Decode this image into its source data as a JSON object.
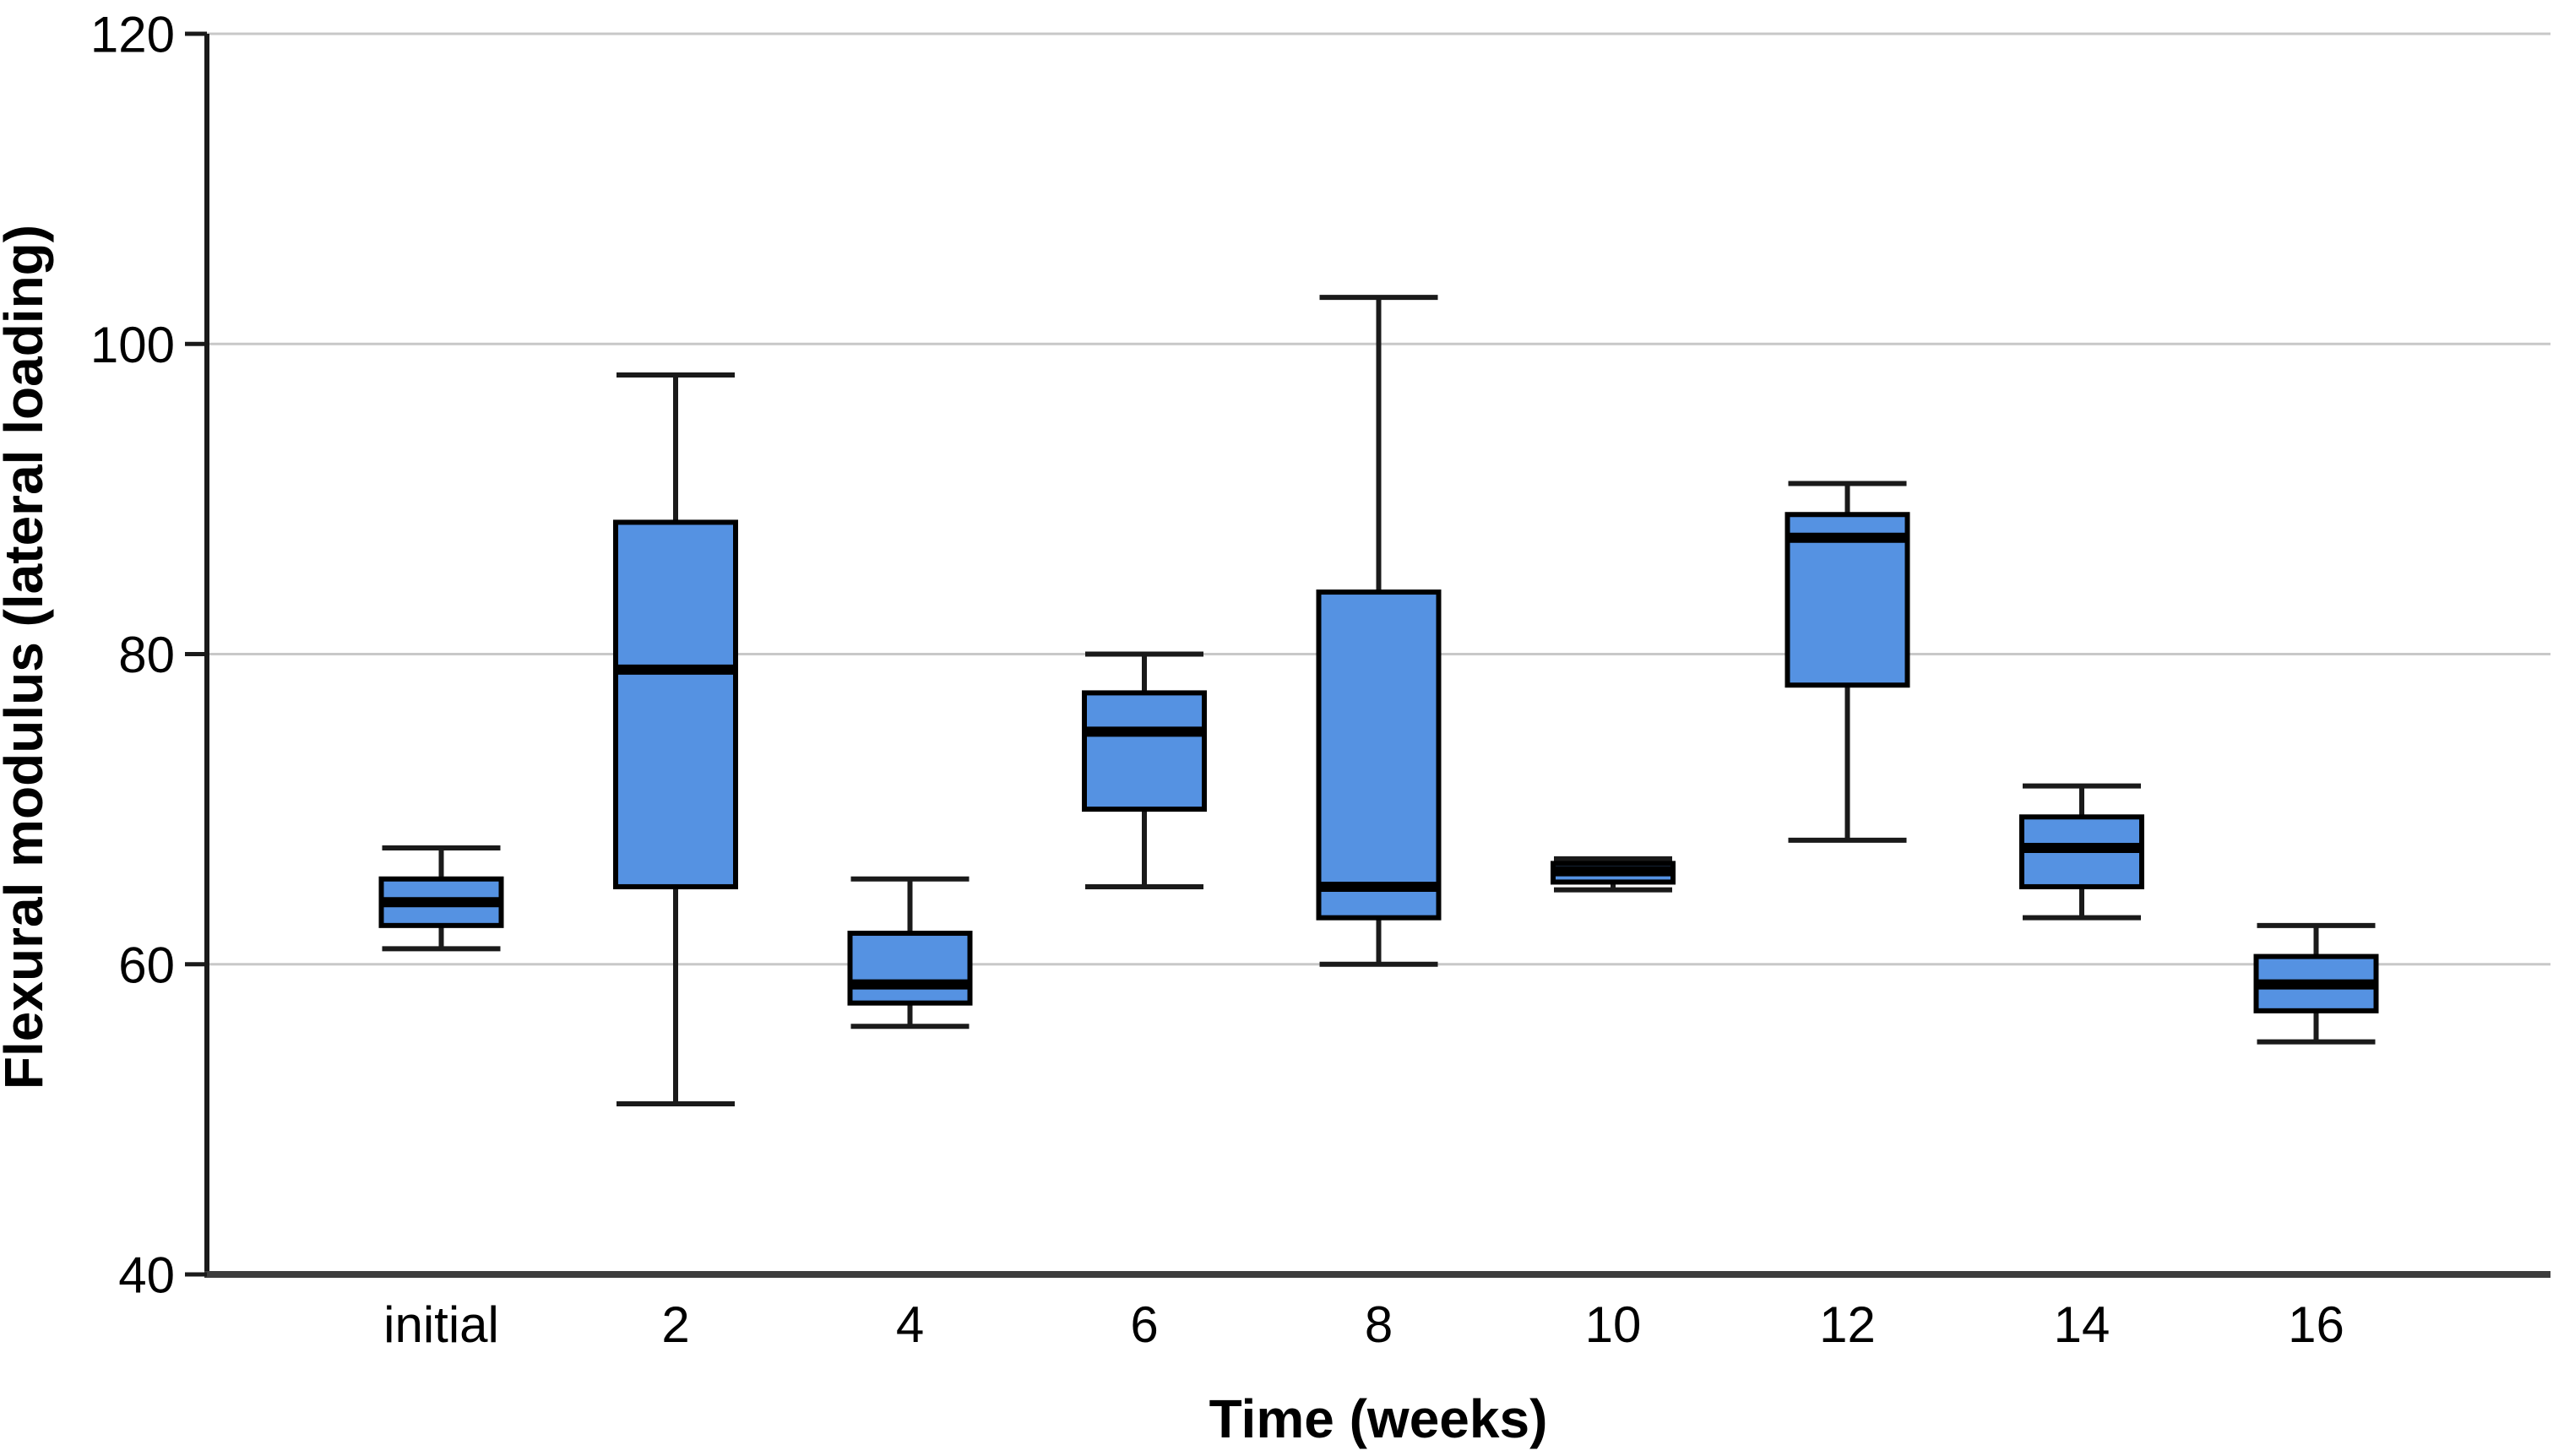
{
  "chart_data": {
    "type": "boxplot",
    "title": "",
    "xlabel": "Time (weeks)",
    "ylabel": "Flexural modulus (lateral loading)",
    "categories": [
      "initial",
      "2",
      "4",
      "6",
      "8",
      "10",
      "12",
      "14",
      "16"
    ],
    "ylim": [
      40,
      120
    ],
    "yticks": [
      40,
      60,
      80,
      100,
      120
    ],
    "grid": {
      "horizontal_gridlines_at": [
        60,
        80,
        100,
        120
      ],
      "vertical": false
    },
    "legend": "none",
    "boxes": [
      {
        "category": "initial",
        "whisker_low": 61,
        "q1": 62.5,
        "median": 64,
        "q3": 65.5,
        "whisker_high": 67.5
      },
      {
        "category": "2",
        "whisker_low": 51,
        "q1": 65,
        "median": 79,
        "q3": 88.5,
        "whisker_high": 98
      },
      {
        "category": "4",
        "whisker_low": 56,
        "q1": 57.5,
        "median": 58.7,
        "q3": 62,
        "whisker_high": 65.5
      },
      {
        "category": "6",
        "whisker_low": 65,
        "q1": 70,
        "median": 75,
        "q3": 77.5,
        "whisker_high": 80
      },
      {
        "category": "8",
        "whisker_low": 60,
        "q1": 63,
        "median": 65,
        "q3": 84,
        "whisker_high": 103
      },
      {
        "category": "10",
        "whisker_low": 64.8,
        "q1": 65.3,
        "median": 66,
        "q3": 66.5,
        "whisker_high": 66.8
      },
      {
        "category": "12",
        "whisker_low": 68,
        "q1": 78,
        "median": 87.5,
        "q3": 89,
        "whisker_high": 91
      },
      {
        "category": "14",
        "whisker_low": 63,
        "q1": 65,
        "median": 67.5,
        "q3": 69.5,
        "whisker_high": 71.5
      },
      {
        "category": "16",
        "whisker_low": 55,
        "q1": 57,
        "median": 58.7,
        "q3": 60.5,
        "whisker_high": 62.5
      }
    ],
    "colors": {
      "box_fill": "#5592E2",
      "box_stroke": "#000000",
      "median_line": "#000000",
      "whisker": "#1a1a1a",
      "gridline": "#C8C8C8",
      "y_axis_line": "#1a1a1a",
      "x_axis_line": "#3d3d3d",
      "text": "#000000",
      "background": "#FFFFFF"
    }
  }
}
